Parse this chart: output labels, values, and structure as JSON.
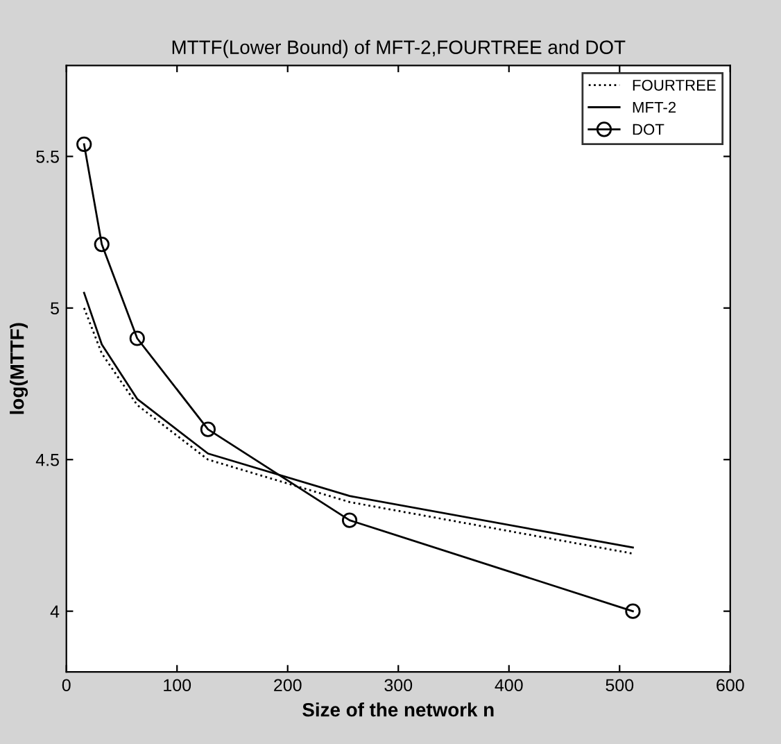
{
  "chart_data": {
    "type": "line",
    "title": "MTTF(Lower Bound) of MFT-2,FOURTREE and DOT",
    "xlabel": "Size of the network n",
    "ylabel": "log(MTTF)",
    "x": [
      16,
      32,
      64,
      128,
      256,
      512
    ],
    "series": [
      {
        "name": "FOURTREE",
        "color": "#000000",
        "line_style": "dotted",
        "marker": "none",
        "values": [
          5.0,
          4.85,
          4.68,
          4.5,
          4.36,
          4.19
        ]
      },
      {
        "name": "MFT-2",
        "color": "#000000",
        "line_style": "solid",
        "marker": "none",
        "values": [
          5.05,
          4.88,
          4.7,
          4.52,
          4.38,
          4.21
        ]
      },
      {
        "name": "DOT",
        "color": "#000000",
        "line_style": "solid",
        "marker": "circle",
        "values": [
          5.54,
          5.21,
          4.9,
          4.6,
          4.3,
          4.0
        ]
      }
    ],
    "xlim": [
      0,
      600
    ],
    "xticks": [
      0,
      100,
      200,
      300,
      400,
      500,
      600
    ],
    "ylim": [
      3.8,
      5.8
    ],
    "yticks": [
      4,
      4.5,
      5,
      5.5
    ],
    "grid": false,
    "legend": "top right"
  }
}
